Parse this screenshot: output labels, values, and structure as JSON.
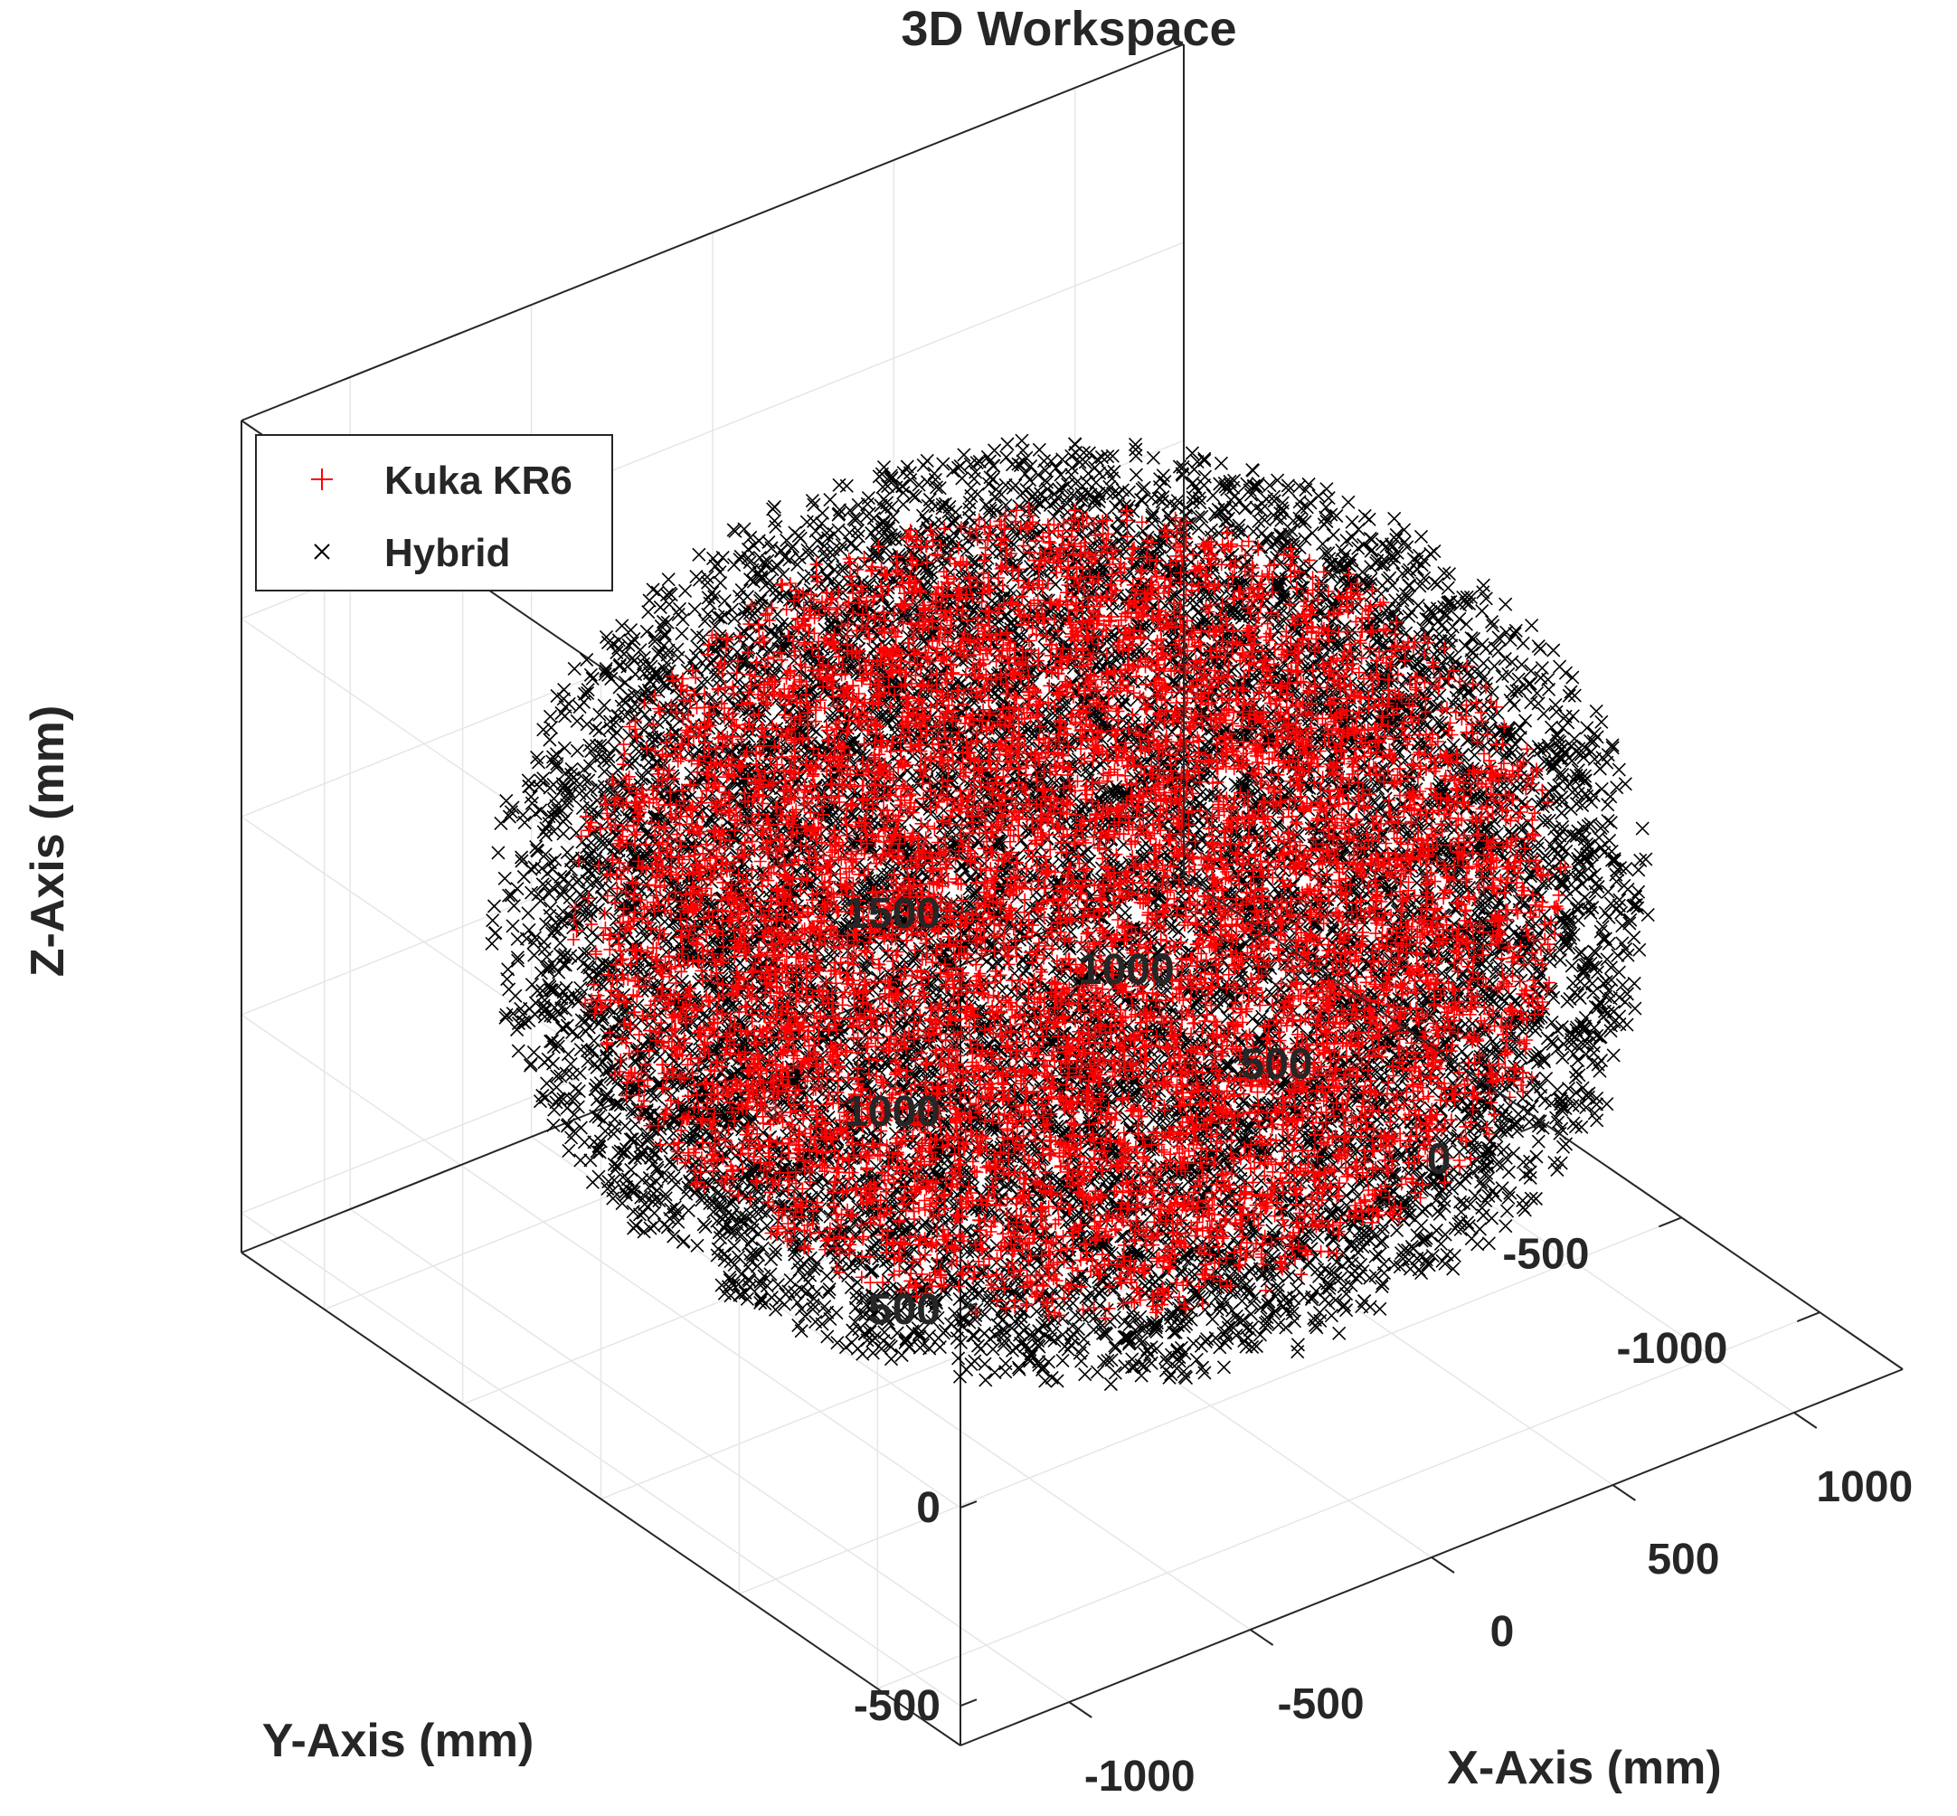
{
  "chart_data": {
    "type": "scatter",
    "projection": "3d",
    "title": "3D Workspace",
    "xlabel": "X-Axis  (mm)",
    "ylabel": "Y-Axis (mm)",
    "zlabel": "Z-Axis (mm)",
    "xlim": [
      -1300,
      1300
    ],
    "ylim": [
      -1300,
      1300
    ],
    "zlim": [
      -600,
      1500
    ],
    "xticks": [
      -1000,
      -500,
      0,
      500,
      1000
    ],
    "yticks": [
      -1000,
      -500,
      0,
      500,
      1000
    ],
    "zticks": [
      -500,
      0,
      500,
      1000,
      1500
    ],
    "xtick_labels": [
      "-1000",
      "-500",
      "0",
      "500",
      "1000"
    ],
    "ytick_labels": [
      "-1000",
      "-500",
      "0",
      "500",
      "1000"
    ],
    "ztick_labels": [
      "-500",
      "0",
      "500",
      "1000",
      "1500"
    ],
    "grid": true,
    "box": true,
    "legend_position": "top-left",
    "series": [
      {
        "name": "Kuka KR6",
        "marker": "+",
        "color": "#ff0000",
        "shape": "sphere",
        "center": [
          0,
          0,
          400
        ],
        "radius": 1100,
        "approx_points": 9000
      },
      {
        "name": "Hybrid",
        "marker": "x",
        "color": "#000000",
        "shape": "sphere",
        "center": [
          0,
          0,
          400
        ],
        "radius": 1280,
        "approx_points": 14000
      }
    ]
  }
}
